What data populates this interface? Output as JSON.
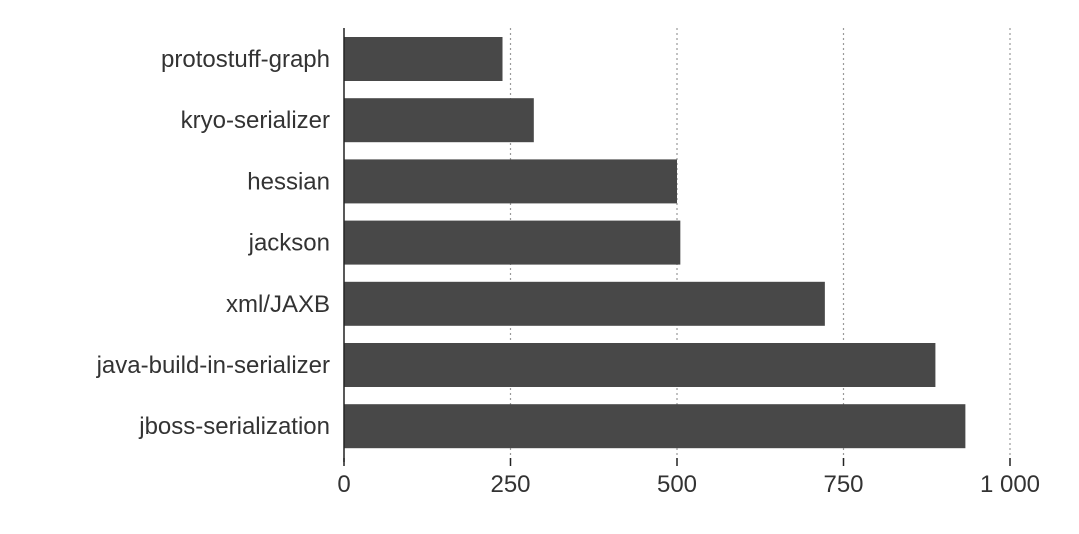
{
  "chart_data": {
    "type": "bar",
    "orientation": "horizontal",
    "categories": [
      "protostuff-graph",
      "kryo-serializer",
      "hessian",
      "jackson",
      "xml/JAXB",
      "java-build-in-serializer",
      "jboss-serialization"
    ],
    "values": [
      238,
      285,
      500,
      505,
      722,
      888,
      933
    ],
    "xlim": [
      0,
      1000
    ],
    "xticks": [
      0,
      250,
      500,
      750,
      1000
    ],
    "xtick_labels": [
      "0",
      "250",
      "500",
      "750",
      "1 000"
    ],
    "title": "",
    "xlabel": "",
    "ylabel": "",
    "grid": "vertical-dotted",
    "legend": "none",
    "bar_color": "#484848"
  }
}
